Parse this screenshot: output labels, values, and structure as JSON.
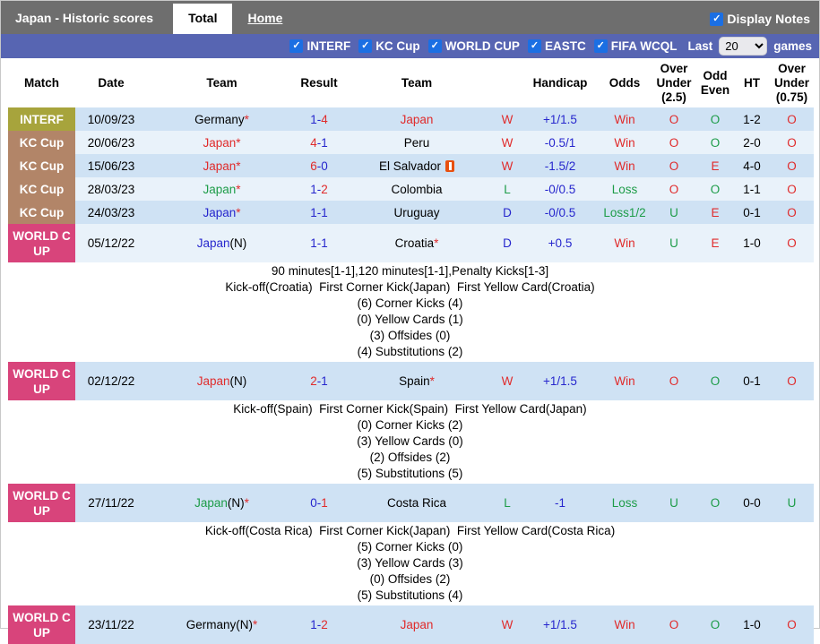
{
  "topbar": {
    "title": "Japan - Historic scores",
    "tabs": [
      {
        "label": "Total"
      },
      {
        "label": "Home"
      }
    ],
    "display_notes_label": "Display Notes"
  },
  "filterbar": {
    "filters": [
      "INTERF",
      "KC Cup",
      "WORLD CUP",
      "EASTC",
      "FIFA WCQL"
    ],
    "last_label": "Last",
    "games_value": "20",
    "games_label": "games"
  },
  "table": {
    "headers": [
      "Match",
      "Date",
      "Team",
      "Result",
      "Team",
      "",
      "Handicap",
      "Odds",
      "Over Under (2.5)",
      "Odd Even",
      "HT",
      "Over Under (0.75)"
    ]
  },
  "colors": {
    "red": "#e02b2b",
    "green": "#1d9c48",
    "blue": "#2626cd",
    "black": "#000000",
    "topbar_bg": "#6e6e6e",
    "filterbar_bg": "#5765b2",
    "checkbox_blue": "#1b6fe3",
    "row_dark": "#cfe2f4",
    "row_light": "#e9f2fa",
    "competition_colors": {
      "INTERF": "#a7a43c",
      "KC Cup": "#b28568",
      "WORLD CUP": "#d8447b"
    }
  },
  "matches": [
    {
      "competition": "INTERF",
      "date": "10/09/23",
      "home": {
        "name": "Germany",
        "color": "black",
        "suffix": "",
        "star": true,
        "card": false
      },
      "score": {
        "home": "1",
        "home_color": "blue",
        "away": "4",
        "away_color": "red"
      },
      "away": {
        "name": "Japan",
        "color": "red",
        "suffix": "",
        "star": false,
        "card": false
      },
      "result": {
        "text": "W",
        "color": "red"
      },
      "handicap": "+1/1.5",
      "odds": {
        "text": "Win",
        "color": "red"
      },
      "over_under_25": {
        "text": "O",
        "color": "red"
      },
      "odd_even": {
        "text": "O",
        "color": "green"
      },
      "ht": "1-2",
      "over_under_075": {
        "text": "O",
        "color": "red"
      },
      "notes": []
    },
    {
      "competition": "KC Cup",
      "date": "20/06/23",
      "home": {
        "name": "Japan",
        "color": "red",
        "suffix": "",
        "star": true,
        "card": false
      },
      "score": {
        "home": "4",
        "home_color": "red",
        "away": "1",
        "away_color": "blue"
      },
      "away": {
        "name": "Peru",
        "color": "black",
        "suffix": "",
        "star": false,
        "card": false
      },
      "result": {
        "text": "W",
        "color": "red"
      },
      "handicap": "-0.5/1",
      "odds": {
        "text": "Win",
        "color": "red"
      },
      "over_under_25": {
        "text": "O",
        "color": "red"
      },
      "odd_even": {
        "text": "O",
        "color": "green"
      },
      "ht": "2-0",
      "over_under_075": {
        "text": "O",
        "color": "red"
      },
      "notes": []
    },
    {
      "competition": "KC Cup",
      "date": "15/06/23",
      "home": {
        "name": "Japan",
        "color": "red",
        "suffix": "",
        "star": true,
        "card": false
      },
      "score": {
        "home": "6",
        "home_color": "red",
        "away": "0",
        "away_color": "blue"
      },
      "away": {
        "name": "El Salvador",
        "color": "black",
        "suffix": "",
        "star": false,
        "card": true
      },
      "result": {
        "text": "W",
        "color": "red"
      },
      "handicap": "-1.5/2",
      "odds": {
        "text": "Win",
        "color": "red"
      },
      "over_under_25": {
        "text": "O",
        "color": "red"
      },
      "odd_even": {
        "text": "E",
        "color": "red"
      },
      "ht": "4-0",
      "over_under_075": {
        "text": "O",
        "color": "red"
      },
      "notes": []
    },
    {
      "competition": "KC Cup",
      "date": "28/03/23",
      "home": {
        "name": "Japan",
        "color": "green",
        "suffix": "",
        "star": true,
        "card": false
      },
      "score": {
        "home": "1",
        "home_color": "blue",
        "away": "2",
        "away_color": "red"
      },
      "away": {
        "name": "Colombia",
        "color": "black",
        "suffix": "",
        "star": false,
        "card": false
      },
      "result": {
        "text": "L",
        "color": "green"
      },
      "handicap": "-0/0.5",
      "odds": {
        "text": "Loss",
        "color": "green"
      },
      "over_under_25": {
        "text": "O",
        "color": "red"
      },
      "odd_even": {
        "text": "O",
        "color": "green"
      },
      "ht": "1-1",
      "over_under_075": {
        "text": "O",
        "color": "red"
      },
      "notes": []
    },
    {
      "competition": "KC Cup",
      "date": "24/03/23",
      "home": {
        "name": "Japan",
        "color": "blue",
        "suffix": "",
        "star": true,
        "card": false
      },
      "score": {
        "home": "1",
        "home_color": "blue",
        "away": "1",
        "away_color": "blue"
      },
      "away": {
        "name": "Uruguay",
        "color": "black",
        "suffix": "",
        "star": false,
        "card": false
      },
      "result": {
        "text": "D",
        "color": "blue"
      },
      "handicap": "-0/0.5",
      "odds": {
        "text": "Loss1/2",
        "color": "green"
      },
      "over_under_25": {
        "text": "U",
        "color": "green"
      },
      "odd_even": {
        "text": "E",
        "color": "red"
      },
      "ht": "0-1",
      "over_under_075": {
        "text": "O",
        "color": "red"
      },
      "notes": []
    },
    {
      "competition": "WORLD CUP",
      "date": "05/12/22",
      "home": {
        "name": "Japan",
        "color": "blue",
        "suffix": "(N)",
        "star": false,
        "card": false
      },
      "score": {
        "home": "1",
        "home_color": "blue",
        "away": "1",
        "away_color": "blue"
      },
      "away": {
        "name": "Croatia",
        "color": "black",
        "suffix": "",
        "star": true,
        "card": false
      },
      "result": {
        "text": "D",
        "color": "blue"
      },
      "handicap": "+0.5",
      "odds": {
        "text": "Win",
        "color": "red"
      },
      "over_under_25": {
        "text": "U",
        "color": "green"
      },
      "odd_even": {
        "text": "E",
        "color": "red"
      },
      "ht": "1-0",
      "over_under_075": {
        "text": "O",
        "color": "red"
      },
      "notes": [
        "90 minutes[1-1],120 minutes[1-1],Penalty Kicks[1-3]",
        "Kick-off(Croatia)  First Corner Kick(Japan)  First Yellow Card(Croatia)",
        "(6) Corner Kicks (4)",
        "(0) Yellow Cards (1)",
        "(3) Offsides (0)",
        "(4) Substitutions (2)"
      ]
    },
    {
      "competition": "WORLD CUP",
      "date": "02/12/22",
      "home": {
        "name": "Japan",
        "color": "red",
        "suffix": "(N)",
        "star": false,
        "card": false
      },
      "score": {
        "home": "2",
        "home_color": "red",
        "away": "1",
        "away_color": "blue"
      },
      "away": {
        "name": "Spain",
        "color": "black",
        "suffix": "",
        "star": true,
        "card": false
      },
      "result": {
        "text": "W",
        "color": "red"
      },
      "handicap": "+1/1.5",
      "odds": {
        "text": "Win",
        "color": "red"
      },
      "over_under_25": {
        "text": "O",
        "color": "red"
      },
      "odd_even": {
        "text": "O",
        "color": "green"
      },
      "ht": "0-1",
      "over_under_075": {
        "text": "O",
        "color": "red"
      },
      "notes": [
        "Kick-off(Spain)  First Corner Kick(Spain)  First Yellow Card(Japan)",
        "(0) Corner Kicks (2)",
        "(3) Yellow Cards (0)",
        "(2) Offsides (2)",
        "(5) Substitutions (5)"
      ]
    },
    {
      "competition": "WORLD CUP",
      "date": "27/11/22",
      "home": {
        "name": "Japan",
        "color": "green",
        "suffix": "(N)",
        "star": true,
        "card": false
      },
      "score": {
        "home": "0",
        "home_color": "blue",
        "away": "1",
        "away_color": "red"
      },
      "away": {
        "name": "Costa Rica",
        "color": "black",
        "suffix": "",
        "star": false,
        "card": false
      },
      "result": {
        "text": "L",
        "color": "green"
      },
      "handicap": "-1",
      "odds": {
        "text": "Loss",
        "color": "green"
      },
      "over_under_25": {
        "text": "U",
        "color": "green"
      },
      "odd_even": {
        "text": "O",
        "color": "green"
      },
      "ht": "0-0",
      "over_under_075": {
        "text": "U",
        "color": "green"
      },
      "notes": [
        "Kick-off(Costa Rica)  First Corner Kick(Japan)  First Yellow Card(Costa Rica)",
        "(5) Corner Kicks (0)",
        "(3) Yellow Cards (3)",
        "(0) Offsides (2)",
        "(5) Substitutions (4)"
      ]
    },
    {
      "competition": "WORLD CUP",
      "date": "23/11/22",
      "home": {
        "name": "Germany",
        "color": "black",
        "suffix": "(N)",
        "star": true,
        "card": false
      },
      "score": {
        "home": "1",
        "home_color": "blue",
        "away": "2",
        "away_color": "red"
      },
      "away": {
        "name": "Japan",
        "color": "red",
        "suffix": "",
        "star": false,
        "card": false
      },
      "result": {
        "text": "W",
        "color": "red"
      },
      "handicap": "+1/1.5",
      "odds": {
        "text": "Win",
        "color": "red"
      },
      "over_under_25": {
        "text": "O",
        "color": "red"
      },
      "odd_even": {
        "text": "O",
        "color": "green"
      },
      "ht": "1-0",
      "over_under_075": {
        "text": "O",
        "color": "red"
      },
      "notes": []
    }
  ]
}
